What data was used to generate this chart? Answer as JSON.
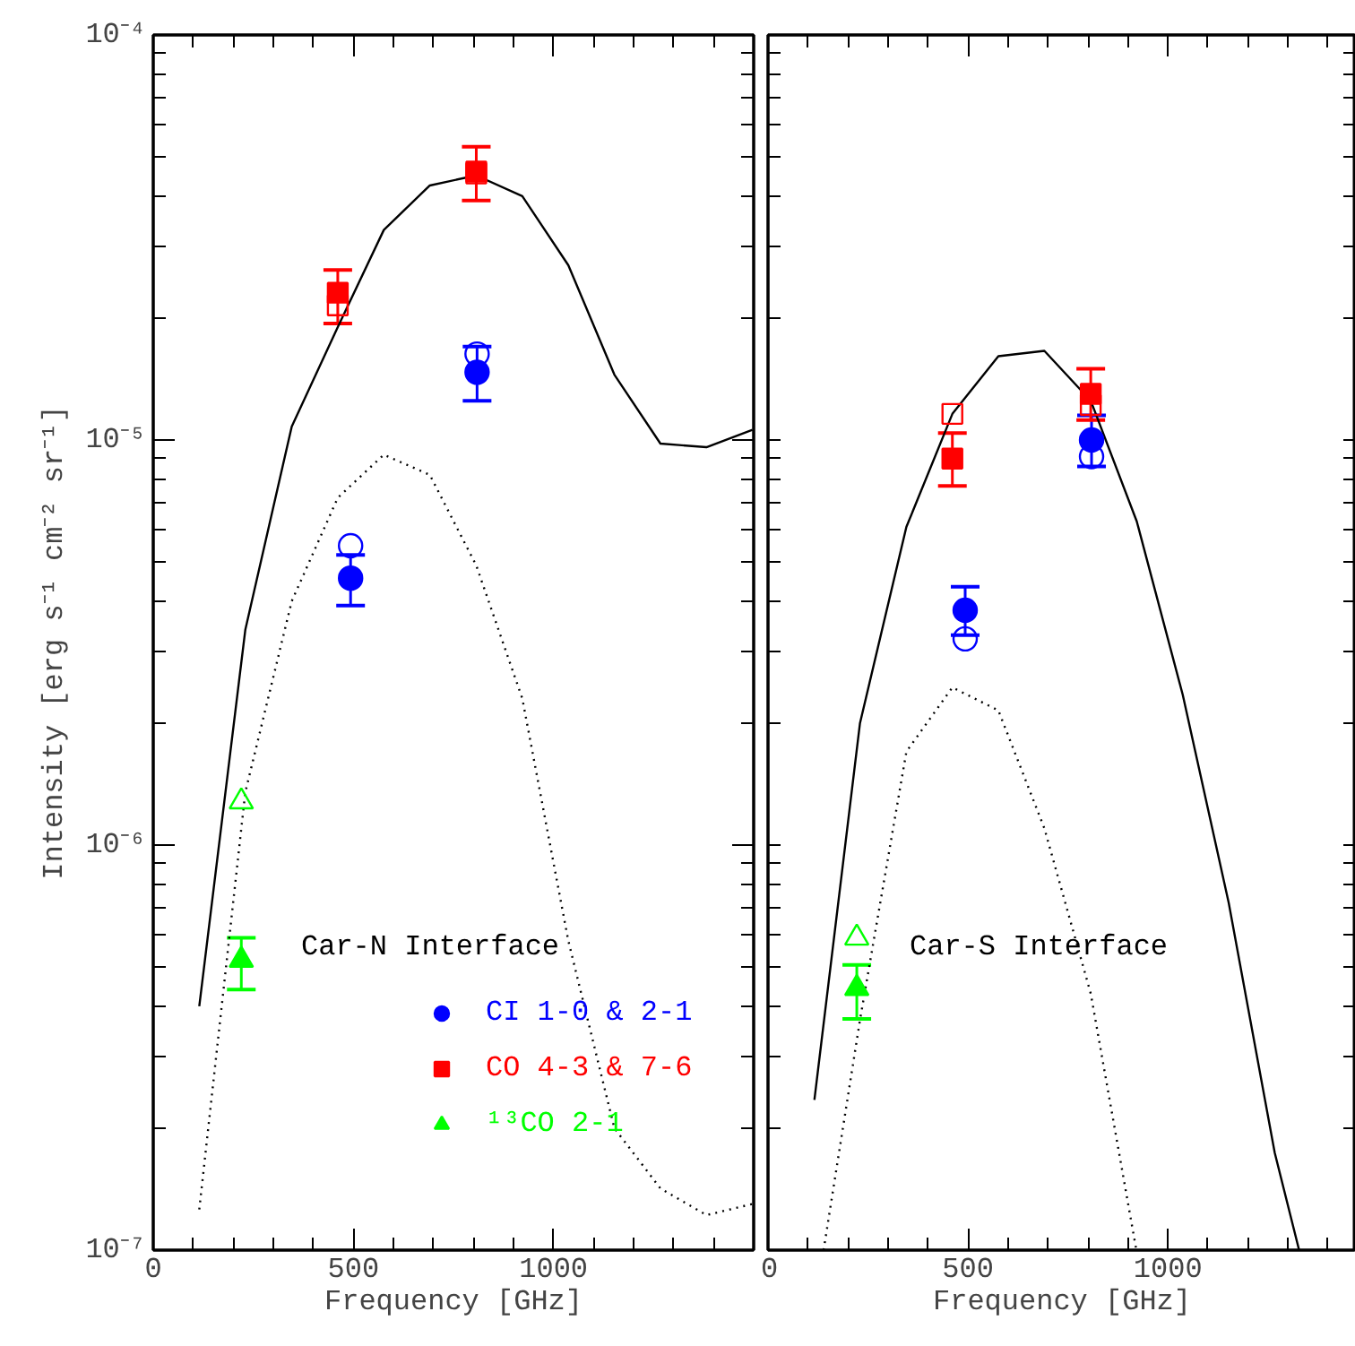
{
  "chart_data": [
    {
      "type": "scatter",
      "xlabel": "Frequency [GHz]",
      "ylabel": "Intensity [erg s⁻¹ cm⁻² sr⁻¹]",
      "log": "y",
      "grid": false,
      "legend": "bottom right",
      "xlim": [
        0,
        1500
      ],
      "ylim": [
        1e-07,
        0.0001
      ],
      "xticks": [
        0,
        {
          "value": 100,
          "label": null
        },
        {
          "value": 200,
          "label": null
        },
        {
          "value": 300,
          "label": null
        },
        {
          "value": 400,
          "label": null
        },
        500,
        {
          "value": 600,
          "label": null
        },
        {
          "value": 700,
          "label": null
        },
        {
          "value": 800,
          "label": null
        },
        {
          "value": 900,
          "label": null
        },
        1000,
        {
          "value": 1100,
          "label": null
        },
        {
          "value": 1200,
          "label": null
        },
        {
          "value": 1300,
          "label": null
        },
        {
          "value": 1400,
          "label": null
        }
      ],
      "yticks": [
        {
          "value": 1e-07,
          "label": "10⁻⁷"
        },
        {
          "value": 2e-07,
          "label": null
        },
        {
          "value": 3e-07,
          "label": null
        },
        {
          "value": 4e-07,
          "label": null
        },
        {
          "value": 5e-07,
          "label": null
        },
        {
          "value": 6e-07,
          "label": null
        },
        {
          "value": 7e-07,
          "label": null
        },
        {
          "value": 8e-07,
          "label": null
        },
        {
          "value": 9e-07,
          "label": null
        },
        {
          "value": 1e-06,
          "label": "10⁻⁶"
        },
        {
          "value": 2e-06,
          "label": null
        },
        {
          "value": 3e-06,
          "label": null
        },
        {
          "value": 4e-06,
          "label": null
        },
        {
          "value": 5e-06,
          "label": null
        },
        {
          "value": 6e-06,
          "label": null
        },
        {
          "value": 7e-06,
          "label": null
        },
        {
          "value": 8e-06,
          "label": null
        },
        {
          "value": 9e-06,
          "label": null
        },
        {
          "value": 1e-05,
          "label": "10⁻⁵"
        },
        {
          "value": 2e-05,
          "label": null
        },
        {
          "value": 3e-05,
          "label": null
        },
        {
          "value": 4e-05,
          "label": null
        },
        {
          "value": 5e-05,
          "label": null
        },
        {
          "value": 6e-05,
          "label": null
        },
        {
          "value": 7e-05,
          "label": null
        },
        {
          "value": 8e-05,
          "label": null
        },
        {
          "value": 9e-05,
          "label": null
        },
        {
          "value": 0.0001,
          "label": "10⁻⁴"
        }
      ],
      "annotations": [
        "Car-N Interface"
      ],
      "series": [
        {
          "type": "line",
          "color": "#000000",
          "line_style": "solid",
          "marker": "none",
          "x": [
            115,
            230,
            346,
            461,
            576,
            691,
            807,
            922,
            1037,
            1152,
            1267,
            1382,
            1497
          ],
          "values": [
            4e-07,
            3.4e-06,
            1.08e-05,
            1.9e-05,
            3.3e-05,
            4.25e-05,
            4.5e-05,
            4e-05,
            2.7e-05,
            1.45e-05,
            9.8e-06,
            9.6e-06,
            1.06e-05
          ]
        },
        {
          "type": "line",
          "color": "#000000",
          "line_style": "dotted",
          "marker": "none",
          "x": [
            115,
            230,
            346,
            461,
            576,
            691,
            807,
            922,
            1037,
            1152,
            1267,
            1382,
            1497
          ],
          "values": [
            1.26e-07,
            1.35e-06,
            4e-06,
            7.2e-06,
            9.2e-06,
            8.2e-06,
            4.9e-06,
            2.3e-06,
            5.8e-07,
            2e-07,
            1.42e-07,
            1.22e-07,
            1.3e-07
          ]
        },
        {
          "name": "CI 1-0 & 2-1",
          "color": "#0000ff",
          "marker": "circle",
          "x": [
            493,
            809
          ],
          "values": [
            4.56e-06,
            1.47e-05
          ],
          "errors": [
            [
              3.9e-06,
              5.2e-06
            ],
            [
              1.25e-05,
              1.7e-05
            ]
          ]
        },
        {
          "color": "#0000ff",
          "marker": "circle",
          "x": [
            493,
            809
          ],
          "values": [
            5.48e-06,
            1.63e-05
          ]
        },
        {
          "name": "CO 4-3 & 7-6",
          "color": "#ff0000",
          "marker": "square",
          "x": [
            461,
            807
          ],
          "values": [
            2.31e-05,
            4.6e-05
          ],
          "errors": [
            [
              1.94e-05,
              2.63e-05
            ],
            [
              3.9e-05,
              5.3e-05
            ]
          ]
        },
        {
          "color": "#ff0000",
          "marker": "square",
          "x": [
            461,
            807
          ],
          "values": [
            2.15e-05,
            4.55e-05
          ]
        },
        {
          "name": "¹³CO 2-1",
          "color": "#00ff00",
          "marker": "triangle",
          "x": [
            220
          ],
          "values": [
            5.2e-07
          ],
          "errors": [
            [
              4.4e-07,
              5.9e-07
            ]
          ]
        },
        {
          "color": "#00ff00",
          "marker": "triangle",
          "x": [
            220
          ],
          "values": [
            1.28e-06
          ]
        }
      ]
    },
    {
      "type": "scatter",
      "xlabel": "Frequency [GHz]",
      "log": "y",
      "grid": false,
      "tick_labels": "x",
      "xlim": [
        0,
        1470
      ],
      "ylim": [
        1e-07,
        0.0001
      ],
      "xticks": [
        0,
        {
          "value": 100,
          "label": null
        },
        {
          "value": 200,
          "label": null
        },
        {
          "value": 300,
          "label": null
        },
        {
          "value": 400,
          "label": null
        },
        500,
        {
          "value": 600,
          "label": null
        },
        {
          "value": 700,
          "label": null
        },
        {
          "value": 800,
          "label": null
        },
        {
          "value": 900,
          "label": null
        },
        1000,
        {
          "value": 1100,
          "label": null
        },
        {
          "value": 1200,
          "label": null
        },
        {
          "value": 1300,
          "label": null
        },
        {
          "value": 1400,
          "label": null
        }
      ],
      "yticks": [
        {
          "value": 1e-07,
          "label": null
        },
        {
          "value": 2e-07,
          "label": null
        },
        {
          "value": 3e-07,
          "label": null
        },
        {
          "value": 4e-07,
          "label": null
        },
        {
          "value": 5e-07,
          "label": null
        },
        {
          "value": 6e-07,
          "label": null
        },
        {
          "value": 7e-07,
          "label": null
        },
        {
          "value": 8e-07,
          "label": null
        },
        {
          "value": 9e-07,
          "label": null
        },
        {
          "value": 1e-06,
          "label": null
        },
        {
          "value": 2e-06,
          "label": null
        },
        {
          "value": 3e-06,
          "label": null
        },
        {
          "value": 4e-06,
          "label": null
        },
        {
          "value": 5e-06,
          "label": null
        },
        {
          "value": 6e-06,
          "label": null
        },
        {
          "value": 7e-06,
          "label": null
        },
        {
          "value": 8e-06,
          "label": null
        },
        {
          "value": 9e-06,
          "label": null
        },
        {
          "value": 1e-05,
          "label": null
        },
        {
          "value": 2e-05,
          "label": null
        },
        {
          "value": 3e-05,
          "label": null
        },
        {
          "value": 4e-05,
          "label": null
        },
        {
          "value": 5e-05,
          "label": null
        },
        {
          "value": 6e-05,
          "label": null
        },
        {
          "value": 7e-05,
          "label": null
        },
        {
          "value": 8e-05,
          "label": null
        },
        {
          "value": 9e-05,
          "label": null
        },
        {
          "value": 0.0001,
          "label": null
        }
      ],
      "annotations": [
        "Car-S Interface"
      ],
      "series": [
        {
          "type": "line",
          "color": "#000000",
          "line_style": "solid",
          "marker": "none",
          "x": [
            116,
            230,
            346,
            461,
            576,
            691,
            807,
            922,
            1037,
            1152,
            1267,
            1328
          ],
          "values": [
            2.35e-07,
            2e-06,
            6.1e-06,
            1.16e-05,
            1.61e-05,
            1.66e-05,
            1.25e-05,
            6.3e-06,
            2.35e-06,
            7.2e-07,
            1.74e-07,
            1e-07
          ]
        },
        {
          "type": "line",
          "color": "#000000",
          "line_style": "dotted",
          "marker": "none",
          "x": [
            139,
            230,
            346,
            461,
            576,
            691,
            807,
            921
          ],
          "values": [
            1e-07,
            3.7e-07,
            1.7e-06,
            2.45e-06,
            2.15e-06,
            1.1e-06,
            4.3e-07,
            1e-07
          ]
        },
        {
          "color": "#0000ff",
          "marker": "circle",
          "x": [
            493,
            809
          ],
          "values": [
            3.8e-06,
            1e-05
          ],
          "errors": [
            [
              3.3e-06,
              4.34e-06
            ],
            [
              8.6e-06,
              1.15e-05
            ]
          ]
        },
        {
          "color": "#0000ff",
          "marker": "circle",
          "x": [
            493,
            809
          ],
          "values": [
            3.23e-06,
            9.1e-06
          ]
        },
        {
          "color": "#ff0000",
          "marker": "square",
          "x": [
            461,
            807
          ],
          "values": [
            9e-06,
            1.3e-05
          ],
          "errors": [
            [
              7.7e-06,
              1.04e-05
            ],
            [
              1.12e-05,
              1.5e-05
            ]
          ]
        },
        {
          "color": "#ff0000",
          "marker": "square",
          "x": [
            461,
            807
          ],
          "values": [
            1.16e-05,
            1.22e-05
          ]
        },
        {
          "color": "#00ff00",
          "marker": "triangle",
          "x": [
            222
          ],
          "values": [
            4.43e-07
          ],
          "errors": [
            [
              3.72e-07,
              5.06e-07
            ]
          ]
        },
        {
          "color": "#00ff00",
          "marker": "triangle",
          "x": [
            222
          ],
          "values": [
            5.9e-07
          ]
        }
      ]
    }
  ]
}
